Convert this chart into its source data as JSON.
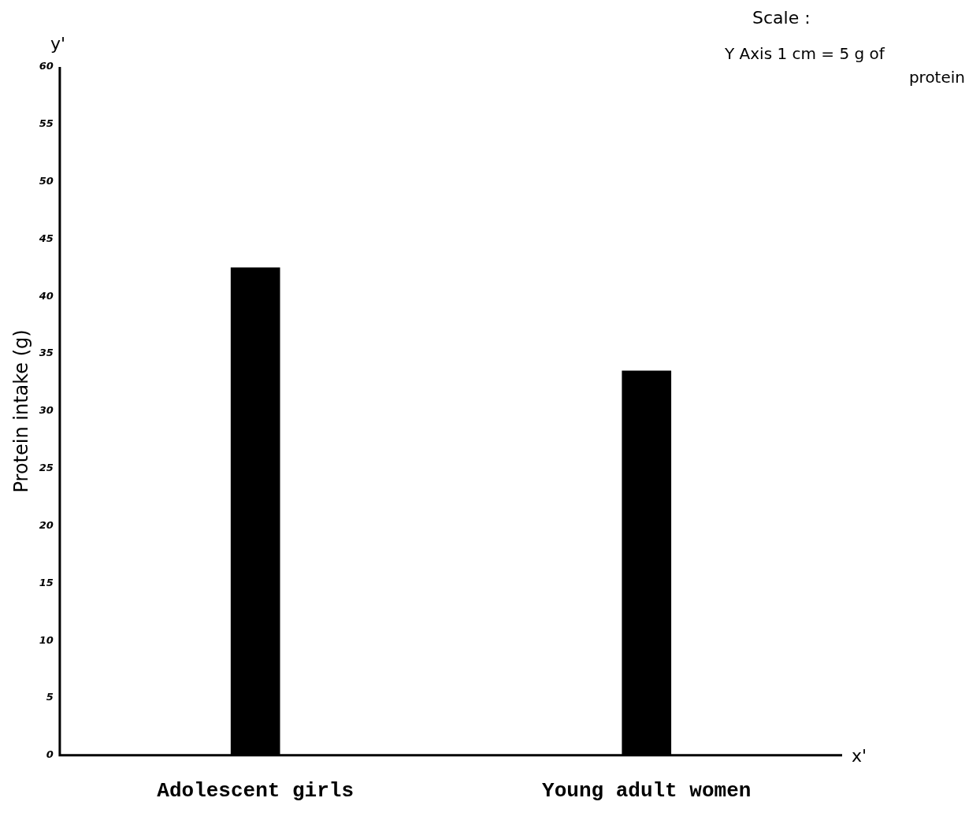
{
  "chart_data": {
    "type": "bar",
    "ylabel": "Protein intake (g)",
    "categories": [
      "Adolescent girls",
      "Young adult women"
    ],
    "values": [
      42.5,
      33.5
    ],
    "color": "#000000",
    "ylim": [
      0,
      60
    ],
    "yticks": [
      0,
      5,
      10,
      15,
      20,
      25,
      30,
      35,
      40,
      45,
      50,
      55,
      60
    ],
    "grid": false,
    "legend": false,
    "annotations": [
      "Scale :",
      "Y Axis 1 cm = 5 g of protein",
      "y'",
      "x'"
    ]
  }
}
